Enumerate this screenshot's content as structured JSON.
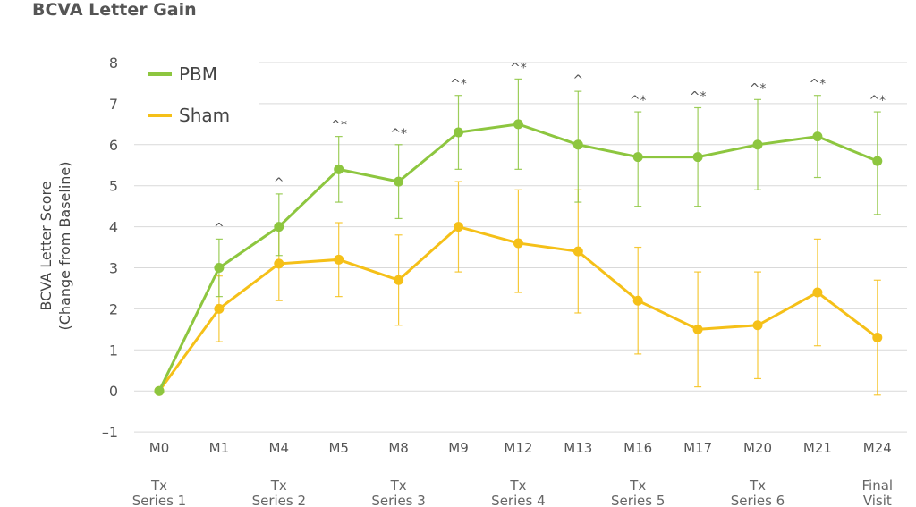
{
  "chart_data": {
    "type": "line",
    "title": "BCVA Letter Gain",
    "ylabel": [
      "BCVA Letter Score",
      "(Change from Baseline)"
    ],
    "xlabel": "",
    "categories": [
      "M0",
      "M1",
      "M4",
      "M5",
      "M8",
      "M9",
      "M12",
      "M13",
      "M16",
      "M17",
      "M20",
      "M21",
      "M24"
    ],
    "ylim": [
      -1,
      8
    ],
    "yticks": [
      -1,
      0,
      1,
      2,
      3,
      4,
      5,
      6,
      7,
      8
    ],
    "grid": true,
    "legend_position": "top-left",
    "series": [
      {
        "name": "PBM",
        "color": "#8dc63f",
        "values": [
          0,
          3.0,
          4.0,
          5.4,
          5.1,
          6.3,
          6.5,
          6.0,
          5.7,
          5.7,
          6.0,
          6.2,
          5.6
        ],
        "err_low": [
          0,
          2.3,
          3.3,
          4.6,
          4.2,
          5.4,
          5.4,
          4.6,
          4.5,
          4.5,
          4.9,
          5.2,
          4.3
        ],
        "err_high": [
          0,
          3.7,
          4.8,
          6.2,
          6.0,
          7.2,
          7.6,
          7.3,
          6.8,
          6.9,
          7.1,
          7.2,
          6.8
        ]
      },
      {
        "name": "Sham",
        "color": "#f5c018",
        "values": [
          0,
          2.0,
          3.1,
          3.2,
          2.7,
          4.0,
          3.6,
          3.4,
          2.2,
          1.5,
          1.6,
          2.4,
          1.3
        ],
        "err_low": [
          0,
          1.2,
          2.2,
          2.3,
          1.6,
          2.9,
          2.4,
          1.9,
          0.9,
          0.1,
          0.3,
          1.1,
          -0.1
        ],
        "err_high": [
          0,
          2.8,
          4.0,
          4.1,
          3.8,
          5.1,
          4.9,
          4.9,
          3.5,
          2.9,
          2.9,
          3.7,
          2.7
        ]
      }
    ],
    "annotations": [
      "",
      "^",
      "^",
      "^*",
      "^*",
      "^*",
      "^*",
      "^",
      "^*",
      "^*",
      "^*",
      "^*",
      "^*"
    ],
    "treatment_labels": [
      {
        "at_category": "M0",
        "lines": [
          "Tx",
          "Series 1"
        ]
      },
      {
        "at_category": "M4",
        "lines": [
          "Tx",
          "Series 2"
        ]
      },
      {
        "at_category": "M8",
        "lines": [
          "Tx",
          "Series 3"
        ]
      },
      {
        "at_category": "M12",
        "lines": [
          "Tx",
          "Series 4"
        ]
      },
      {
        "at_category": "M16",
        "lines": [
          "Tx",
          "Series 5"
        ]
      },
      {
        "at_category": "M20",
        "lines": [
          "Tx",
          "Series 6"
        ]
      },
      {
        "at_category": "M24",
        "lines": [
          "Final",
          "Visit"
        ]
      }
    ]
  }
}
